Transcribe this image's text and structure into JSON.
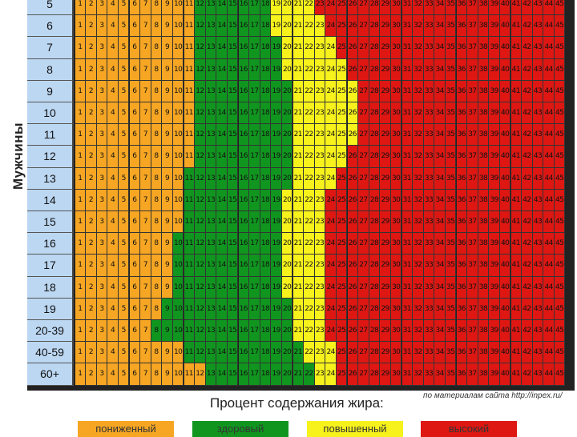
{
  "vertical_label": "Мужчины",
  "subtitle": "Процент содержания жира:",
  "source": "по материалам сайта http://inpex.ru/",
  "colors": {
    "low": "#f6a623",
    "healthy": "#10961f",
    "elevated": "#f7f21c",
    "high": "#de1713",
    "age_bg": "#bcd7f2"
  },
  "legend": [
    {
      "key": "low",
      "label": "пониженный"
    },
    {
      "key": "healthy",
      "label": "здоровый"
    },
    {
      "key": "elevated",
      "label": "повышенный"
    },
    {
      "key": "high",
      "label": "высокий"
    }
  ],
  "chart_data": {
    "type": "heatmap",
    "title": "",
    "xlabel": "Процент содержания жира:",
    "ylabel": "Мужчины",
    "x": [
      1,
      2,
      3,
      4,
      5,
      6,
      7,
      8,
      9,
      10,
      11,
      12,
      13,
      14,
      15,
      16,
      17,
      18,
      19,
      20,
      21,
      22,
      23,
      24,
      25,
      26,
      27,
      28,
      29,
      30,
      31,
      32,
      33,
      34,
      35,
      36,
      37,
      38,
      39,
      40,
      41,
      42,
      43,
      44,
      45
    ],
    "categories": [
      "5",
      "6",
      "7",
      "8",
      "9",
      "10",
      "11",
      "12",
      "13",
      "14",
      "15",
      "16",
      "17",
      "18",
      "19",
      "20-39",
      "40-59",
      "60+"
    ],
    "zone_upper_bounds_order": [
      "low",
      "healthy",
      "elevated"
    ],
    "rows": [
      {
        "age": "5",
        "low_max": 11,
        "healthy_max": 18,
        "elevated_max": 22
      },
      {
        "age": "6",
        "low_max": 11,
        "healthy_max": 18,
        "elevated_max": 23
      },
      {
        "age": "7",
        "low_max": 11,
        "healthy_max": 19,
        "elevated_max": 24
      },
      {
        "age": "8",
        "low_max": 11,
        "healthy_max": 19,
        "elevated_max": 25
      },
      {
        "age": "9",
        "low_max": 11,
        "healthy_max": 20,
        "elevated_max": 26
      },
      {
        "age": "10",
        "low_max": 11,
        "healthy_max": 20,
        "elevated_max": 26
      },
      {
        "age": "11",
        "low_max": 11,
        "healthy_max": 20,
        "elevated_max": 26
      },
      {
        "age": "12",
        "low_max": 11,
        "healthy_max": 20,
        "elevated_max": 25
      },
      {
        "age": "13",
        "low_max": 10,
        "healthy_max": 20,
        "elevated_max": 24
      },
      {
        "age": "14",
        "low_max": 10,
        "healthy_max": 19,
        "elevated_max": 23
      },
      {
        "age": "15",
        "low_max": 10,
        "healthy_max": 19,
        "elevated_max": 23
      },
      {
        "age": "16",
        "low_max": 9,
        "healthy_max": 19,
        "elevated_max": 23
      },
      {
        "age": "17",
        "low_max": 9,
        "healthy_max": 19,
        "elevated_max": 23
      },
      {
        "age": "18",
        "low_max": 9,
        "healthy_max": 19,
        "elevated_max": 23
      },
      {
        "age": "19",
        "low_max": 8,
        "healthy_max": 20,
        "elevated_max": 23
      },
      {
        "age": "20-39",
        "low_max": 7,
        "healthy_max": 20,
        "elevated_max": 23
      },
      {
        "age": "40-59",
        "low_max": 10,
        "healthy_max": 21,
        "elevated_max": 24
      },
      {
        "age": "60+",
        "low_max": 12,
        "healthy_max": 22,
        "elevated_max": 24
      }
    ]
  }
}
